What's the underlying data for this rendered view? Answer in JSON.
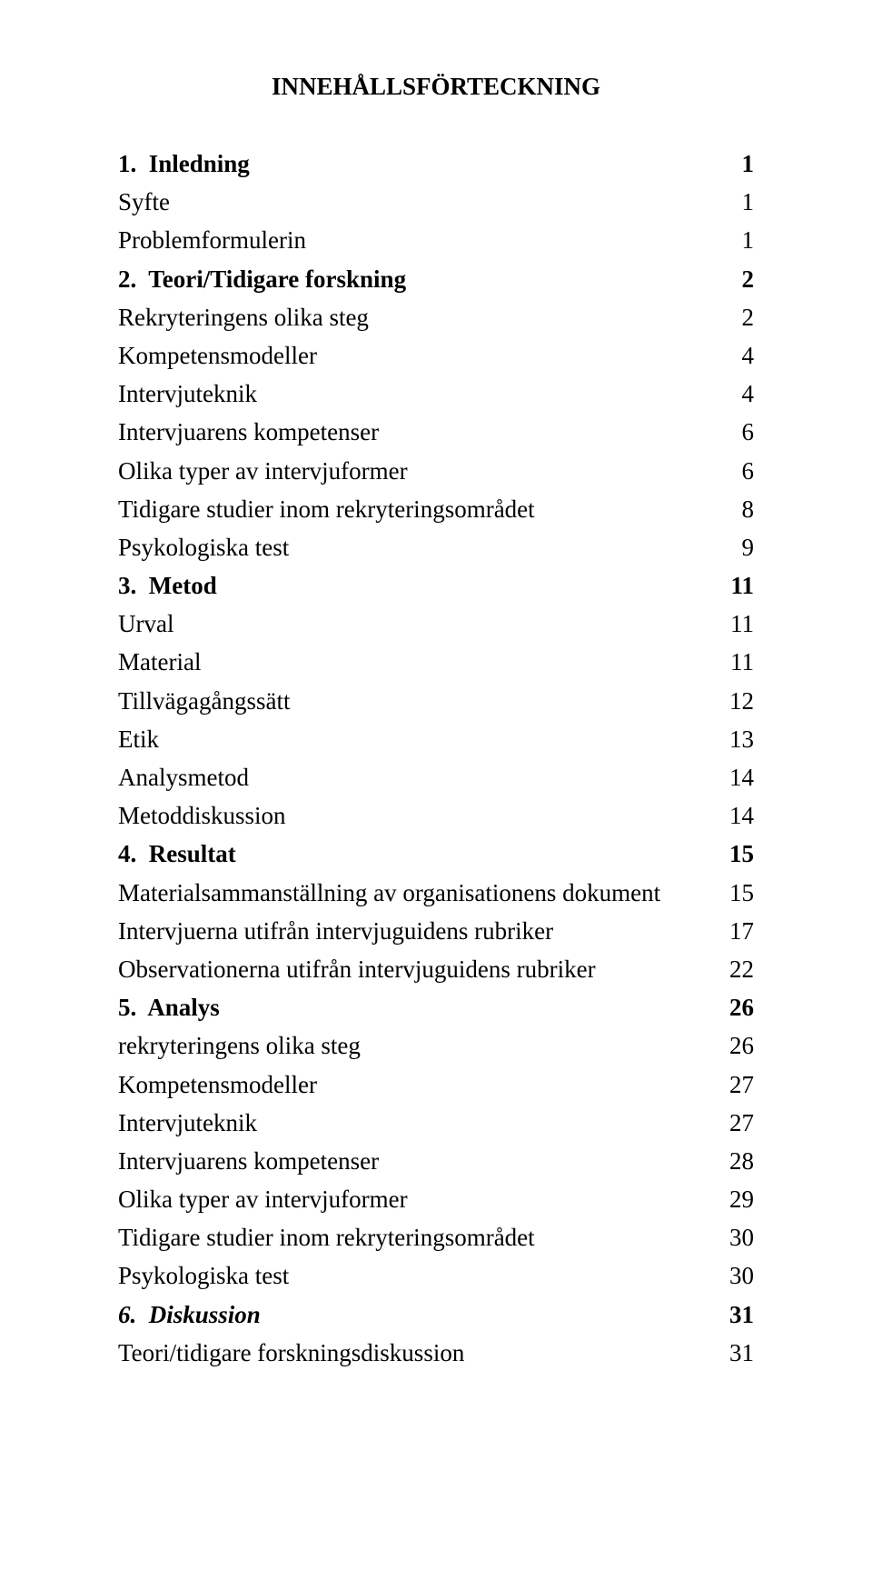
{
  "title_fontsize": 27,
  "line_fontsize": 27,
  "text_color": "#000000",
  "background_color": "#ffffff",
  "title": "INNEHÅLLSFÖRTECKNING",
  "entries": [
    {
      "label": "1.  Inledning",
      "page": "1",
      "bold": true,
      "italic": false
    },
    {
      "label": "Syfte",
      "page": "1",
      "bold": false,
      "italic": false
    },
    {
      "label": "Problemformulerin",
      "page": "1",
      "bold": false,
      "italic": false
    },
    {
      "label": "2.  Teori/Tidigare forskning",
      "page": "2",
      "bold": true,
      "italic": false
    },
    {
      "label": "Rekryteringens olika steg",
      "page": "2",
      "bold": false,
      "italic": false
    },
    {
      "label": "Kompetensmodeller",
      "page": "4",
      "bold": false,
      "italic": false
    },
    {
      "label": "Intervjuteknik",
      "page": "4",
      "bold": false,
      "italic": false
    },
    {
      "label": "Intervjuarens kompetenser",
      "page": "6",
      "bold": false,
      "italic": false
    },
    {
      "label": "Olika typer av intervjuformer",
      "page": "6",
      "bold": false,
      "italic": false
    },
    {
      "label": "Tidigare studier inom rekryteringsområdet",
      "page": "8",
      "bold": false,
      "italic": false
    },
    {
      "label": "Psykologiska test",
      "page": "9",
      "bold": false,
      "italic": false
    },
    {
      "label": "3.  Metod",
      "page": "11",
      "bold": true,
      "italic": false
    },
    {
      "label": "Urval",
      "page": "11",
      "bold": false,
      "italic": false
    },
    {
      "label": "Material",
      "page": "11",
      "bold": false,
      "italic": false
    },
    {
      "label": "Tillvägagångssätt",
      "page": "12",
      "bold": false,
      "italic": false
    },
    {
      "label": "Etik",
      "page": "13",
      "bold": false,
      "italic": false
    },
    {
      "label": "Analysmetod",
      "page": "14",
      "bold": false,
      "italic": false
    },
    {
      "label": "Metoddiskussion",
      "page": "14",
      "bold": false,
      "italic": false
    },
    {
      "label": "4.  Resultat",
      "page": "15",
      "bold": true,
      "italic": false
    },
    {
      "label": "Materialsammanställning av organisationens dokument",
      "page": "15",
      "bold": false,
      "italic": false
    },
    {
      "label": "Intervjuerna utifrån intervjuguidens rubriker",
      "page": "17",
      "bold": false,
      "italic": false
    },
    {
      "label": "Observationerna utifrån intervjuguidens rubriker",
      "page": "22",
      "bold": false,
      "italic": false
    },
    {
      "label": "5.  Analys",
      "page": "26",
      "bold": true,
      "italic": false
    },
    {
      "label": "rekryteringens olika steg",
      "page": "26",
      "bold": false,
      "italic": false
    },
    {
      "label": "Kompetensmodeller",
      "page": "27",
      "bold": false,
      "italic": false
    },
    {
      "label": "Intervjuteknik",
      "page": "27",
      "bold": false,
      "italic": false
    },
    {
      "label": "Intervjuarens kompetenser",
      "page": "28",
      "bold": false,
      "italic": false
    },
    {
      "label": "Olika typer av intervjuformer",
      "page": "29",
      "bold": false,
      "italic": false
    },
    {
      "label": "Tidigare studier inom rekryteringsområdet",
      "page": "30",
      "bold": false,
      "italic": false
    },
    {
      "label": "Psykologiska test",
      "page": "30",
      "bold": false,
      "italic": false
    },
    {
      "label": "6.  Diskussion",
      "page": "31",
      "bold": true,
      "italic": true
    },
    {
      "label": "Teori/tidigare forskningsdiskussion",
      "page": "31",
      "bold": false,
      "italic": false
    }
  ]
}
